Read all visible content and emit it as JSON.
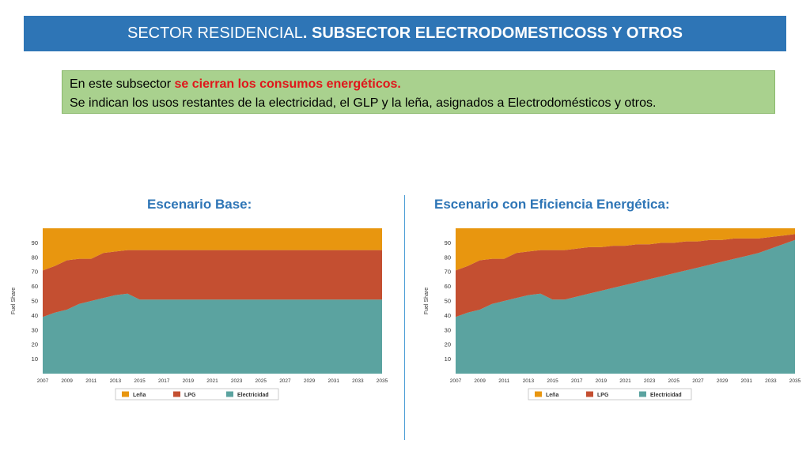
{
  "header": {
    "title_regular": "SECTOR RESIDENCIAL",
    "title_bold": ". SUBSECTOR ELECTRODOMESTICOSS Y OTROS"
  },
  "note": {
    "line1_prefix": "En este subsector ",
    "line1_highlight": "se cierran los consumos energéticos.",
    "line2": "Se indican los usos restantes de la electricidad, el GLP y la leña, asignados a Electrodomésticos y otros."
  },
  "colors": {
    "header_bg": "#2e75b6",
    "note_bg": "#a9d18e",
    "highlight": "#e0161b",
    "lena": "#e8960f",
    "lpg": "#c44f31",
    "electricidad": "#5ba3a0"
  },
  "panels": [
    {
      "title": "Escenario Base:"
    },
    {
      "title": "Escenario con Eficiencia Energética:"
    }
  ],
  "chart_data": [
    {
      "type": "area",
      "title": "Escenario Base:",
      "ylabel": "Fuel Share",
      "xlabel": "",
      "ylim": [
        0,
        100
      ],
      "x": [
        2007,
        2008,
        2009,
        2010,
        2011,
        2012,
        2013,
        2014,
        2015,
        2016,
        2017,
        2018,
        2019,
        2020,
        2021,
        2022,
        2023,
        2024,
        2025,
        2026,
        2027,
        2028,
        2029,
        2030,
        2031,
        2032,
        2033,
        2034,
        2035
      ],
      "x_ticks": [
        "2007",
        "2009",
        "2011",
        "2013",
        "2015",
        "2017",
        "2019",
        "2021",
        "2023",
        "2025",
        "2027",
        "2029",
        "2031",
        "2033",
        "2035"
      ],
      "y_ticks": [
        "10",
        "20",
        "30",
        "40",
        "50",
        "60",
        "70",
        "80",
        "90"
      ],
      "legend": "bottom",
      "series": [
        {
          "name": "Electricidad",
          "values": [
            39,
            42,
            44,
            48,
            50,
            52,
            54,
            55,
            51,
            51,
            51,
            51,
            51,
            51,
            51,
            51,
            51,
            51,
            51,
            51,
            51,
            51,
            51,
            51,
            51,
            51,
            51,
            51,
            51
          ]
        },
        {
          "name": "LPG",
          "values": [
            32,
            32,
            34,
            31,
            29,
            31,
            30,
            30,
            34,
            34,
            34,
            34,
            34,
            34,
            34,
            34,
            34,
            34,
            34,
            34,
            34,
            34,
            34,
            34,
            34,
            34,
            34,
            34,
            34
          ]
        },
        {
          "name": "Leña",
          "values": [
            29,
            26,
            22,
            21,
            21,
            17,
            16,
            15,
            15,
            15,
            15,
            15,
            15,
            15,
            15,
            15,
            15,
            15,
            15,
            15,
            15,
            15,
            15,
            15,
            15,
            15,
            15,
            15,
            15
          ]
        }
      ]
    },
    {
      "type": "area",
      "title": "Escenario con Eficiencia Energética:",
      "ylabel": "Fuel Share",
      "xlabel": "",
      "ylim": [
        0,
        100
      ],
      "x": [
        2007,
        2008,
        2009,
        2010,
        2011,
        2012,
        2013,
        2014,
        2015,
        2016,
        2017,
        2018,
        2019,
        2020,
        2021,
        2022,
        2023,
        2024,
        2025,
        2026,
        2027,
        2028,
        2029,
        2030,
        2031,
        2032,
        2033,
        2034,
        2035
      ],
      "x_ticks": [
        "2007",
        "2009",
        "2011",
        "2013",
        "2015",
        "2017",
        "2019",
        "2021",
        "2023",
        "2025",
        "2027",
        "2029",
        "2031",
        "2033",
        "2035"
      ],
      "y_ticks": [
        "10",
        "20",
        "30",
        "40",
        "50",
        "60",
        "70",
        "80",
        "90"
      ],
      "legend": "bottom",
      "series": [
        {
          "name": "Electricidad",
          "values": [
            39,
            42,
            44,
            48,
            50,
            52,
            54,
            55,
            51,
            51,
            53,
            55,
            57,
            59,
            61,
            63,
            65,
            67,
            69,
            71,
            73,
            75,
            77,
            79,
            81,
            83,
            86,
            89,
            92
          ]
        },
        {
          "name": "LPG",
          "values": [
            32,
            32,
            34,
            31,
            29,
            31,
            30,
            30,
            34,
            34,
            33,
            32,
            30,
            29,
            27,
            26,
            24,
            23,
            21,
            20,
            18,
            17,
            15,
            14,
            12,
            10,
            8,
            6,
            4
          ]
        },
        {
          "name": "Leña",
          "values": [
            29,
            26,
            22,
            21,
            21,
            17,
            16,
            15,
            15,
            15,
            14,
            13,
            13,
            12,
            12,
            11,
            11,
            10,
            10,
            9,
            9,
            8,
            8,
            7,
            7,
            7,
            6,
            5,
            4
          ]
        }
      ]
    }
  ]
}
